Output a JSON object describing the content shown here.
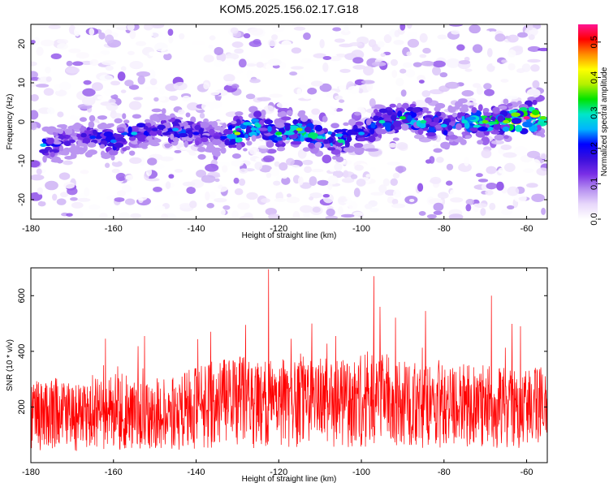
{
  "title": "KOM5.2025.156.02.17.G18",
  "chart_data": [
    {
      "type": "heatmap",
      "xlabel": "Height of straight line (km)",
      "ylabel": "Frequency (Hz)",
      "xlim": [
        -180,
        -55
      ],
      "ylim": [
        -25,
        25
      ],
      "xticks": [
        -180,
        -160,
        -140,
        -120,
        -100,
        -80,
        -60
      ],
      "yticks": [
        -20,
        -10,
        0,
        10,
        20
      ],
      "colorbar": {
        "label": "Normalized spectral amplitude",
        "range": [
          0,
          0.55
        ],
        "ticks": [
          0.0,
          0.1,
          0.2,
          0.3,
          0.4,
          0.5
        ],
        "colormap": [
          "#ffffff",
          "#e8d8fb",
          "#b58ef0",
          "#7a2fe6",
          "#3b0fdd",
          "#0000ff",
          "#00b4ff",
          "#00e6c8",
          "#00e400",
          "#b4f000",
          "#ffff00",
          "#ff8c00",
          "#ff0000",
          "#ff1493"
        ]
      },
      "band": {
        "x": [
          -177,
          -170,
          -165,
          -160,
          -155,
          -150,
          -145,
          -140,
          -135,
          -130,
          -125,
          -120,
          -115,
          -110,
          -105,
          -100,
          -95,
          -90,
          -85,
          -80,
          -75,
          -70,
          -65,
          -60,
          -56
        ],
        "center_hz": [
          -6,
          -5,
          -4,
          -5,
          -3,
          -2,
          -2,
          -3,
          -4,
          -3,
          -1,
          -3,
          -2,
          -4,
          -5,
          -3,
          0,
          1,
          0,
          -1,
          0,
          0,
          0,
          1,
          1
        ],
        "peak_amplitude": [
          0.26,
          0.15,
          0.22,
          0.24,
          0.27,
          0.18,
          0.25,
          0.2,
          0.14,
          0.38,
          0.3,
          0.33,
          0.37,
          0.29,
          0.31,
          0.25,
          0.3,
          0.33,
          0.31,
          0.26,
          0.29,
          0.36,
          0.37,
          0.55,
          0.36
        ]
      }
    },
    {
      "type": "line",
      "xlabel": "Height of straight line (km)",
      "ylabel": "SNR (10 * v/v)",
      "xlim": [
        -180,
        -55
      ],
      "ylim": [
        0,
        700
      ],
      "xticks": [
        -180,
        -160,
        -140,
        -120,
        -100,
        -80,
        -60
      ],
      "yticks": [
        200,
        400,
        600
      ],
      "color": "#ff0000",
      "baseline": [
        180,
        180,
        160,
        170,
        190,
        175,
        165,
        180,
        200,
        215,
        220,
        205,
        215,
        225,
        220,
        210,
        230,
        225,
        215,
        205,
        215,
        205,
        200,
        195,
        200,
        195
      ],
      "baseline_x": [
        -180,
        -175,
        -170,
        -165,
        -160,
        -155,
        -150,
        -145,
        -140,
        -135,
        -130,
        -125,
        -120,
        -115,
        -110,
        -105,
        -100,
        -95,
        -90,
        -85,
        -80,
        -75,
        -70,
        -65,
        -60,
        -55
      ],
      "peaks": [
        {
          "x": -152.5,
          "y": 455
        },
        {
          "x": -128.0,
          "y": 495
        },
        {
          "x": -122.5,
          "y": 695
        },
        {
          "x": -117.0,
          "y": 445
        },
        {
          "x": -112.0,
          "y": 500
        },
        {
          "x": -97.0,
          "y": 670
        },
        {
          "x": -95.5,
          "y": 560
        },
        {
          "x": -84.5,
          "y": 545
        },
        {
          "x": -68.5,
          "y": 600
        },
        {
          "x": -61.5,
          "y": 490
        }
      ]
    }
  ]
}
